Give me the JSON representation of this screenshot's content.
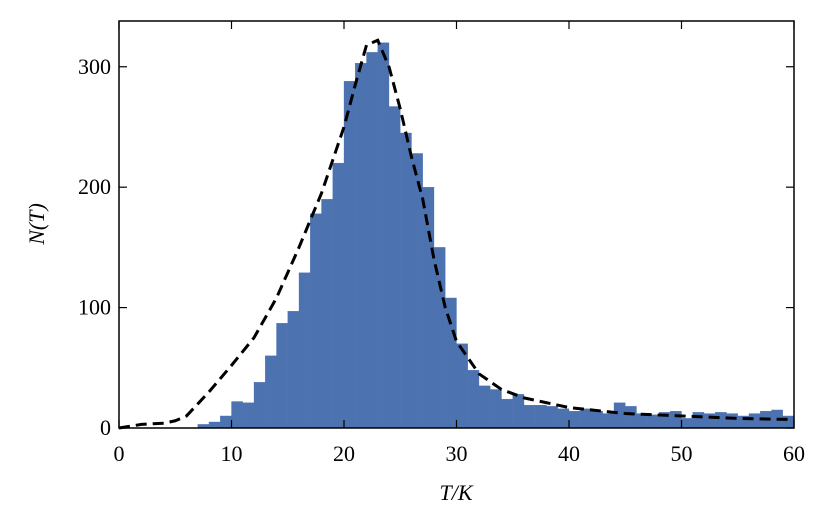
{
  "chart_data": {
    "type": "histogram",
    "xlabel": "T/K",
    "ylabel": "N(T)",
    "bins": [
      7,
      8,
      9,
      10,
      11,
      12,
      13,
      14,
      15,
      16,
      17,
      18,
      19,
      20,
      21,
      22,
      23,
      24,
      25,
      26,
      27,
      28,
      29,
      30,
      31,
      32,
      33,
      34,
      35,
      36,
      37,
      38,
      39,
      40,
      41,
      42,
      43,
      44,
      45,
      46,
      47,
      48,
      49,
      50,
      51,
      52,
      53,
      54,
      55,
      56,
      57,
      58,
      59,
      60
    ],
    "counts": [
      3,
      5,
      10,
      22,
      21,
      38,
      60,
      87,
      97,
      129,
      178,
      190,
      220,
      288,
      303,
      312,
      320,
      267,
      245,
      228,
      200,
      150,
      108,
      70,
      48,
      35,
      32,
      24,
      28,
      19,
      19,
      18,
      16,
      14,
      16,
      14,
      12,
      21,
      18,
      12,
      11,
      13,
      14,
      8,
      13,
      12,
      13,
      12,
      10,
      12,
      14,
      15,
      10
    ],
    "color": "#4c72b0",
    "curve": {
      "color": "#000000",
      "x": [
        0,
        2,
        4,
        5,
        6,
        7,
        8,
        10,
        12,
        14,
        16,
        18,
        20,
        21,
        22,
        23,
        24,
        25,
        26,
        27,
        28,
        29,
        30,
        32,
        34,
        36,
        40,
        45,
        50,
        55,
        60
      ],
      "y": [
        0,
        3,
        4,
        6,
        10,
        20,
        30,
        52,
        75,
        108,
        150,
        195,
        250,
        285,
        318,
        322,
        300,
        265,
        225,
        190,
        140,
        100,
        72,
        45,
        32,
        25,
        17,
        12,
        10,
        8,
        7
      ]
    },
    "xlim": [
      0,
      60
    ],
    "ylim": [
      0,
      338
    ],
    "xticks": [
      0,
      10,
      20,
      30,
      40,
      50,
      60
    ],
    "yticks": [
      0,
      100,
      200,
      300
    ]
  }
}
